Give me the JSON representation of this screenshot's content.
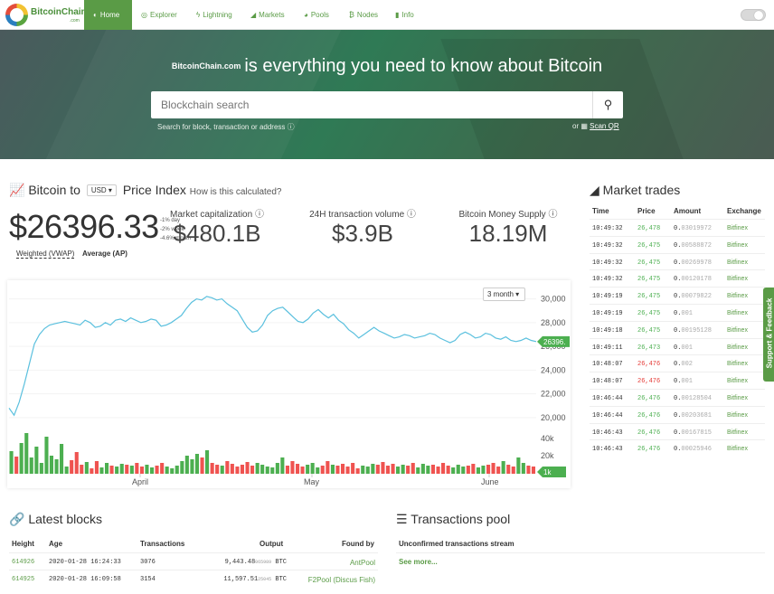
{
  "nav": {
    "logo_text": "BitcoinChain",
    "logo_sub": ".com",
    "items": [
      {
        "label": "Home",
        "icon": "globe-icon",
        "glyph": "◐"
      },
      {
        "label": "Explorer",
        "icon": "eye-icon",
        "glyph": "◎"
      },
      {
        "label": "Lightning",
        "icon": "bolt-icon",
        "glyph": "ϟ"
      },
      {
        "label": "Markets",
        "icon": "area-chart-icon",
        "glyph": "◢"
      },
      {
        "label": "Pools",
        "icon": "pie-icon",
        "glyph": "◕"
      },
      {
        "label": "Nodes",
        "icon": "bitcoin-icon",
        "glyph": "₿"
      },
      {
        "label": "Info",
        "icon": "book-icon",
        "glyph": "▮"
      }
    ]
  },
  "hero": {
    "site": "BitcoinChain.com",
    "tagline": "is everything you need to know about Bitcoin",
    "search_placeholder": "Blockchain search",
    "search_help": "Search for block, transaction or address ⓘ",
    "or_text": "or ",
    "scan_label": "Scan QR"
  },
  "price_index": {
    "title_prefix": "Bitcoin to",
    "currency": "USD",
    "title_suffix": "Price Index",
    "how": "How is this calculated?",
    "price": "$26396.33",
    "mini_labels": [
      "-1%",
      "day",
      "-2%",
      "week",
      "-4.6%",
      "month"
    ],
    "weighted": "Weighted (VWAP)",
    "average": "Average (AP)"
  },
  "stats": [
    {
      "label": "Market capitalization ⓘ",
      "value": "$480.1B"
    },
    {
      "label": "24H transaction volume ⓘ",
      "value": "$3.9B"
    },
    {
      "label": "Bitcoin Money Supply ⓘ",
      "value": "18.19M"
    }
  ],
  "chart_range": "3 month ▾",
  "chart_data": {
    "type": "line",
    "title": "",
    "x_ticks": [
      "April",
      "May",
      "June"
    ],
    "y_ticks": [
      "30,000",
      "28,000",
      "26,000",
      "24,000",
      "22,000",
      "20,000"
    ],
    "ylim": [
      19000,
      30500
    ],
    "current_price_label": "26396.",
    "volume_ticks": [
      "40k",
      "20k",
      "1k"
    ],
    "series": [
      {
        "values": [
          20800,
          20200,
          21300,
          22800,
          24500,
          26200,
          27000,
          27500,
          27800,
          27900,
          28000,
          28100,
          28000,
          27900,
          27800,
          28200,
          28000,
          27600,
          27700,
          28000,
          27800,
          28200,
          28300,
          28100,
          28400,
          28200,
          28000,
          28100,
          28300,
          28200,
          27700,
          27800,
          28000,
          28300,
          28600,
          29200,
          29700,
          30000,
          29900,
          30200,
          30100,
          29900,
          30000,
          29600,
          29300,
          29000,
          28300,
          27600,
          27200,
          27300,
          27800,
          28600,
          29000,
          29200,
          29300,
          28900,
          28500,
          28100,
          28000,
          28300,
          28800,
          29100,
          28700,
          28400,
          28700,
          28200,
          27900,
          27400,
          27100,
          26700,
          27000,
          27300,
          27600,
          27300,
          27100,
          26900,
          26700,
          26800,
          27000,
          26900,
          26700,
          26800,
          26900,
          27100,
          27000,
          26700,
          26500,
          26300,
          26500,
          27000,
          27200,
          27000,
          26700,
          26800,
          27100,
          27000,
          26700,
          26600,
          26800,
          26500,
          26400,
          26500,
          26700,
          26500,
          26400
        ]
      }
    ],
    "volume": [
      25,
      19,
      34,
      45,
      18,
      30,
      12,
      41,
      20,
      16,
      33,
      8,
      15,
      24,
      10,
      13,
      6,
      14,
      7,
      12,
      9,
      8,
      11,
      10,
      9,
      12,
      8,
      10,
      7,
      9,
      12,
      8,
      6,
      9,
      14,
      20,
      16,
      22,
      18,
      26,
      12,
      10,
      9,
      14,
      11,
      8,
      10,
      13,
      9,
      12,
      10,
      8,
      7,
      12,
      18,
      9,
      14,
      11,
      8,
      10,
      12,
      7,
      9,
      14,
      10,
      9,
      11,
      8,
      12,
      6,
      9,
      8,
      11,
      10,
      13,
      9,
      11,
      8,
      10,
      9,
      12,
      7,
      11,
      9,
      10,
      8,
      12,
      9,
      7,
      10,
      8,
      9,
      11,
      7,
      9,
      10,
      12,
      8,
      14,
      10,
      8,
      18,
      12,
      9,
      8
    ],
    "volume_ylim": [
      0,
      50000
    ]
  },
  "market_trades": {
    "title": "Market trades",
    "headers": [
      "Time",
      "Price",
      "Amount",
      "Exchange"
    ],
    "rows": [
      {
        "time": "10:49:32",
        "price": "26,478",
        "dir": "up",
        "amt_hi": "0.",
        "amt_lo": "03019972",
        "ex": "Bitfinex"
      },
      {
        "time": "10:49:32",
        "price": "26,475",
        "dir": "up",
        "amt_hi": "0.",
        "amt_lo": "00588872",
        "ex": "Bitfinex"
      },
      {
        "time": "10:49:32",
        "price": "26,475",
        "dir": "up",
        "amt_hi": "0.",
        "amt_lo": "00269978",
        "ex": "Bitfinex"
      },
      {
        "time": "10:49:32",
        "price": "26,475",
        "dir": "up",
        "amt_hi": "0.",
        "amt_lo": "00120178",
        "ex": "Bitfinex"
      },
      {
        "time": "10:49:19",
        "price": "26,475",
        "dir": "up",
        "amt_hi": "0.",
        "amt_lo": "00079822",
        "ex": "Bitfinex"
      },
      {
        "time": "10:49:19",
        "price": "26,475",
        "dir": "up",
        "amt_hi": "0.",
        "amt_lo": "001",
        "ex": "Bitfinex"
      },
      {
        "time": "10:49:18",
        "price": "26,475",
        "dir": "up",
        "amt_hi": "0.",
        "amt_lo": "00195128",
        "ex": "Bitfinex"
      },
      {
        "time": "10:49:11",
        "price": "26,473",
        "dir": "up",
        "amt_hi": "0.",
        "amt_lo": "001",
        "ex": "Bitfinex"
      },
      {
        "time": "10:48:07",
        "price": "26,476",
        "dir": "down",
        "amt_hi": "0.",
        "amt_lo": "002",
        "ex": "Bitfinex"
      },
      {
        "time": "10:48:07",
        "price": "26,476",
        "dir": "down",
        "amt_hi": "0.",
        "amt_lo": "001",
        "ex": "Bitfinex"
      },
      {
        "time": "10:46:44",
        "price": "26,476",
        "dir": "up",
        "amt_hi": "0.",
        "amt_lo": "00128504",
        "ex": "Bitfinex"
      },
      {
        "time": "10:46:44",
        "price": "26,476",
        "dir": "up",
        "amt_hi": "0.",
        "amt_lo": "00203681",
        "ex": "Bitfinex"
      },
      {
        "time": "10:46:43",
        "price": "26,476",
        "dir": "up",
        "amt_hi": "0.",
        "amt_lo": "00167815",
        "ex": "Bitfinex"
      },
      {
        "time": "10:46:43",
        "price": "26,476",
        "dir": "up",
        "amt_hi": "0.",
        "amt_lo": "00025946",
        "ex": "Bitfinex"
      }
    ]
  },
  "feedback_label": "Support & Feedback",
  "latest_blocks": {
    "title": "Latest blocks",
    "headers": [
      "Height",
      "Age",
      "Transactions",
      "Output",
      "Found by"
    ],
    "rows": [
      {
        "height": "614926",
        "age": "2020-01-28 16:24:33",
        "tx": "3076",
        "out_main": "9,443.48",
        "out_frac": "065989",
        "unit": " BTC",
        "pool": "AntPool"
      },
      {
        "height": "614925",
        "age": "2020-01-28 16:09:58",
        "tx": "3154",
        "out_main": "11,597.51",
        "out_frac": "25045",
        "unit": " BTC",
        "pool": "F2Pool (Discus Fish)"
      }
    ]
  },
  "tx_pool": {
    "title": "Transactions pool",
    "subtitle": "Unconfirmed transactions stream",
    "more": "See more..."
  },
  "colors": {
    "brand_green": "#5a9b46",
    "line_blue": "#5bc0de",
    "vol_green": "#4caf50",
    "vol_red": "#ef5350"
  }
}
